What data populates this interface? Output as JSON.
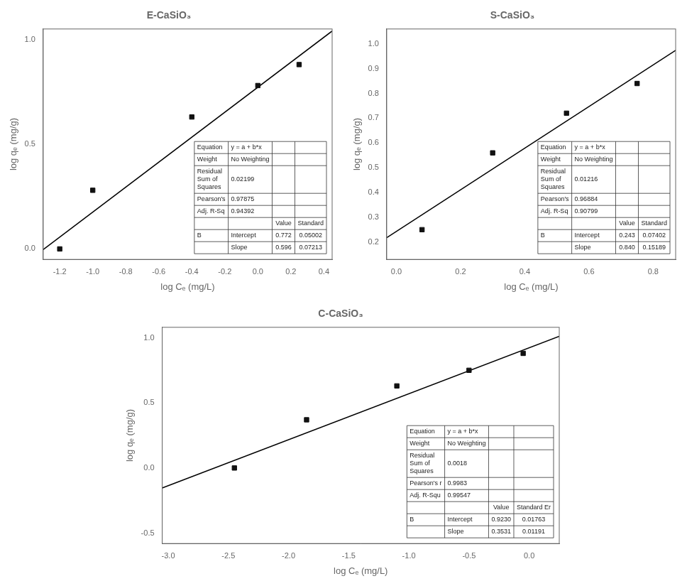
{
  "chart_data": [
    {
      "type": "scatter",
      "title": "E-CaSiO₃",
      "xlabel": "log Cₑ (mg/L)",
      "ylabel": "log qₑ (mg/g)",
      "series": [
        {
          "type": "scatter",
          "marker": "square",
          "color": "#111111",
          "x": [
            -1.2,
            -1.0,
            -0.4,
            0.0,
            0.25
          ],
          "values": [
            0.0,
            0.28,
            0.63,
            0.78,
            0.88
          ]
        },
        {
          "type": "line",
          "line_style": "solid",
          "color": "#000000",
          "x": [
            -1.3,
            0.45
          ],
          "values": [
            -0.0028,
            1.0402
          ]
        }
      ],
      "xlim": [
        -1.3,
        0.45
      ],
      "ylim": [
        -0.05,
        1.05
      ],
      "xticks": [
        -1.2,
        {
          "value": -1.0,
          "label": "-1.0"
        },
        -0.8,
        -0.6,
        -0.4,
        -0.2,
        {
          "value": 0.0,
          "label": "0.0"
        },
        0.2,
        0.4
      ],
      "yticks": [
        {
          "value": 0.0,
          "label": "0.0"
        },
        0.5,
        {
          "value": 1.0,
          "label": "1.0"
        }
      ],
      "grid": false,
      "table": [
        [
          "Equation",
          "y = a + b*x",
          null,
          null
        ],
        [
          "Weight",
          "No Weighting",
          null,
          null
        ],
        [
          "Residual\nSum of\nSquares",
          "0.02199",
          null,
          null
        ],
        [
          "Pearson's",
          "0.97875",
          null,
          null
        ],
        [
          "Adj. R-Sq",
          "0.94392",
          null,
          null
        ],
        [
          null,
          null,
          "Value",
          "Standard"
        ],
        [
          "B",
          "Intercept",
          "0.772",
          "0.05002"
        ],
        [
          null,
          "Slope",
          "0.596",
          "0.07213"
        ]
      ]
    },
    {
      "type": "scatter",
      "title": "S-CaSiO₃",
      "xlabel": "log Cₑ (mg/L)",
      "ylabel": "log qₑ (mg/g)",
      "series": [
        {
          "type": "scatter",
          "marker": "square",
          "color": "#111111",
          "x": [
            0.08,
            0.3,
            0.53,
            0.75
          ],
          "values": [
            0.25,
            0.56,
            0.72,
            0.84
          ]
        },
        {
          "type": "line",
          "line_style": "solid",
          "color": "#000000",
          "x": [
            -0.03,
            0.87
          ],
          "values": [
            0.2178,
            0.9738
          ]
        }
      ],
      "xlim": [
        -0.03,
        0.87
      ],
      "ylim": [
        0.13,
        1.06
      ],
      "xticks": [
        {
          "value": 0.0,
          "label": "0.0"
        },
        0.2,
        0.4,
        0.6,
        0.8
      ],
      "yticks": [
        0.2,
        0.3,
        0.4,
        0.5,
        0.6,
        0.7,
        0.8,
        0.9,
        {
          "value": 1.0,
          "label": "1.0"
        }
      ],
      "grid": false,
      "table": [
        [
          "Equation",
          "y = a + b*x",
          null,
          null
        ],
        [
          "Weight",
          "No Weighting",
          null,
          null
        ],
        [
          "Residual\nSum of\nSquares",
          "0.01216",
          null,
          null
        ],
        [
          "Pearson's",
          "0.96884",
          null,
          null
        ],
        [
          "Adj. R-Sq",
          "0.90799",
          null,
          null
        ],
        [
          null,
          null,
          "Value",
          "Standard"
        ],
        [
          "B",
          "Intercept",
          "0.243",
          "0.07402"
        ],
        [
          null,
          "Slope",
          "0.840",
          "0.15189"
        ]
      ]
    },
    {
      "type": "scatter",
      "title": "C-CaSiO₃",
      "xlabel": "log Cₑ (mg/L)",
      "ylabel": "log qₑ (mg/g)",
      "series": [
        {
          "type": "scatter",
          "marker": "square",
          "color": "#111111",
          "x": [
            -2.45,
            -1.85,
            -1.1,
            -0.5,
            -0.05
          ],
          "values": [
            0.0,
            0.37,
            0.63,
            0.75,
            0.88
          ]
        },
        {
          "type": "line",
          "line_style": "solid",
          "color": "#000000",
          "x": [
            -3.05,
            0.25
          ],
          "values": [
            -0.153955,
            1.011275
          ]
        }
      ],
      "xlim": [
        -3.05,
        0.25
      ],
      "ylim": [
        -0.58,
        1.08
      ],
      "xticks": [
        {
          "value": -3.0,
          "label": "-3.0"
        },
        -2.5,
        {
          "value": -2.0,
          "label": "-2.0"
        },
        -1.5,
        {
          "value": -1.0,
          "label": "-1.0"
        },
        -0.5,
        {
          "value": 0.0,
          "label": "0.0"
        }
      ],
      "yticks": [
        -0.5,
        {
          "value": 0.0,
          "label": "0.0"
        },
        0.5,
        {
          "value": 1.0,
          "label": "1.0"
        }
      ],
      "grid": false,
      "table": [
        [
          "Equation",
          "y = a + b*x",
          null,
          null
        ],
        [
          "Weight",
          "No Weighting",
          null,
          null
        ],
        [
          "Residual\nSum of\nSquares",
          "0.0018",
          null,
          null
        ],
        [
          "Pearson's r",
          "0.9983",
          null,
          null
        ],
        [
          "Adj. R-Squ",
          "0.99547",
          null,
          null
        ],
        [
          null,
          null,
          "Value",
          "Standard Er"
        ],
        [
          "B",
          "Intercept",
          "0.9230",
          "0.01763"
        ],
        [
          null,
          "Slope",
          "0.3531",
          "0.01191"
        ]
      ]
    }
  ]
}
